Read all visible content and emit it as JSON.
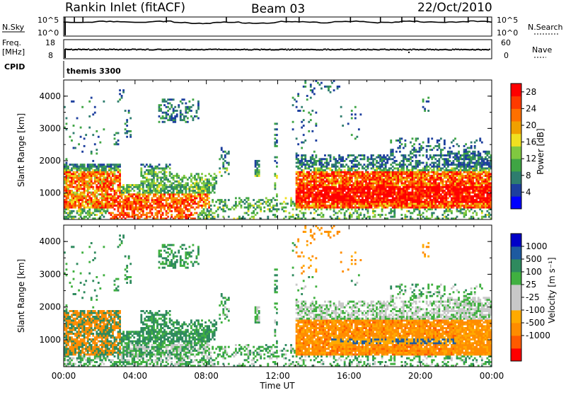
{
  "header": {
    "station": "Rankin Inlet (fitACF)",
    "beam": "Beam 03",
    "date": "22/Oct/2010"
  },
  "top_panels": {
    "nsky_label": "N.Sky",
    "nsky_ticks": [
      "10^5",
      "10^0"
    ],
    "nsearch_label": "N.Search",
    "nsearch_ticks": [
      "10^5",
      "10^0"
    ],
    "freq_label_1": "Freq.",
    "freq_label_2": "[MHz]",
    "freq_ticks": [
      "18",
      "8"
    ],
    "nave_label": "Nave",
    "nave_ticks": [
      "60",
      "0"
    ],
    "cpid_label": "CPID",
    "cpid_value": "themis 3300"
  },
  "colors": {
    "power_scale": [
      "#0000ff",
      "#1d3f9e",
      "#2e7d6e",
      "#3fa544",
      "#80c840",
      "#f0e020",
      "#f0a000",
      "#ff7000",
      "#ff3a00",
      "#ff0000"
    ],
    "velocity_scale": [
      "#ff0000",
      "#ff5a00",
      "#ff8c00",
      "#ffaa00",
      "#c8c8c8",
      "#c8c8c8",
      "#40b040",
      "#2e8a5e",
      "#1d5aa0",
      "#0000c8"
    ]
  },
  "chart_data": [
    {
      "type": "heatmap",
      "panel": "power",
      "ylabel": "Slant Range [km]",
      "x_ticks": [
        "00:00",
        "04:00",
        "08:00",
        "12:00",
        "16:00",
        "20:00",
        "00:00"
      ],
      "y_ticks": [
        "1000",
        "2000",
        "3000",
        "4000"
      ],
      "ylim": [
        180,
        4500
      ],
      "xlim_hours": [
        0,
        24
      ],
      "colorbar": {
        "label": "Power [dB]",
        "ticks": [
          "4",
          "8",
          "12",
          "16",
          "20",
          "24",
          "28"
        ],
        "range": [
          0,
          30
        ]
      }
    },
    {
      "type": "heatmap",
      "panel": "velocity",
      "ylabel": "Slant Range [km]",
      "xlabel": "Time UT",
      "x_ticks": [
        "00:00",
        "04:00",
        "08:00",
        "12:00",
        "16:00",
        "20:00",
        "00:00"
      ],
      "y_ticks": [
        "1000",
        "2000",
        "3000",
        "4000"
      ],
      "ylim": [
        180,
        4500
      ],
      "xlim_hours": [
        0,
        24
      ],
      "colorbar": {
        "label": "Velocity [m s⁻¹]",
        "ticks": [
          "1000",
          "500",
          "100",
          "25",
          "-25",
          "-100",
          "-500",
          "-1000"
        ]
      }
    }
  ]
}
